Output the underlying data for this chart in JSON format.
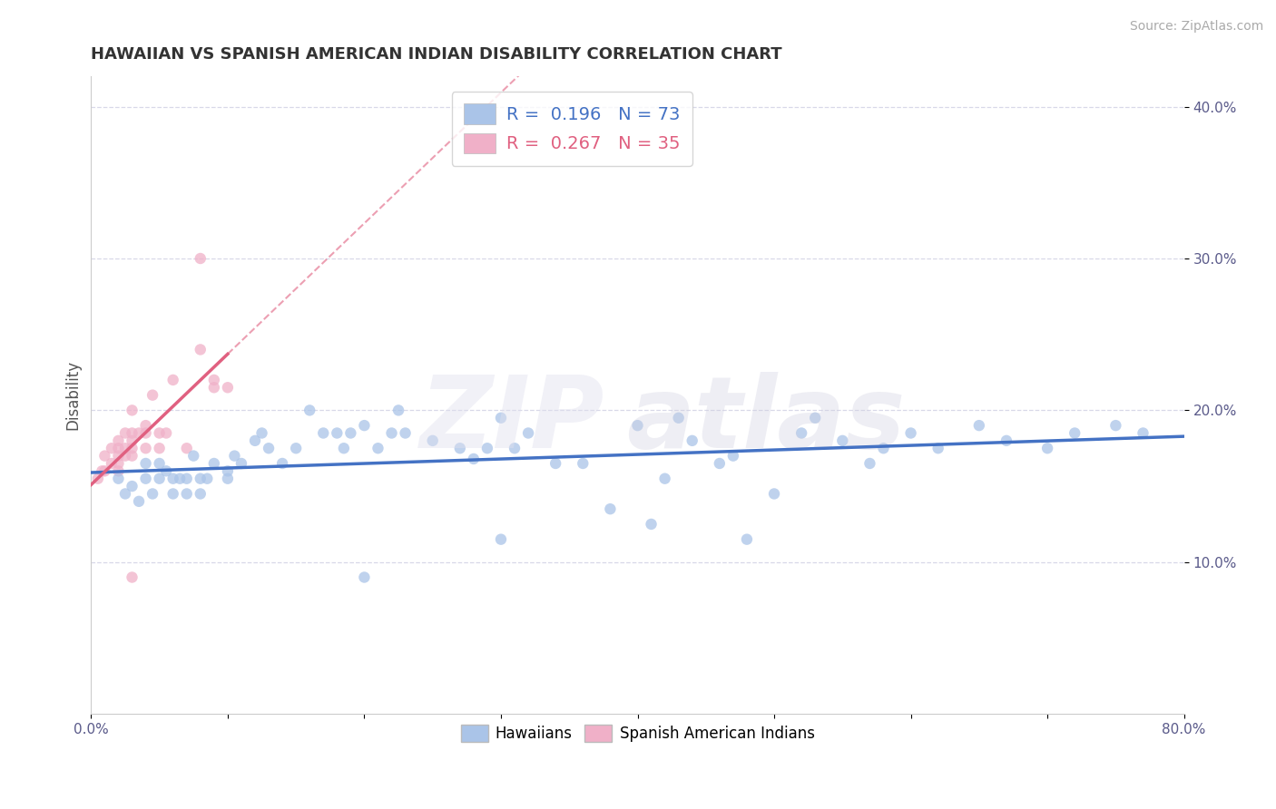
{
  "title": "HAWAIIAN VS SPANISH AMERICAN INDIAN DISABILITY CORRELATION CHART",
  "source": "Source: ZipAtlas.com",
  "ylabel": "Disability",
  "xlim": [
    0.0,
    0.8
  ],
  "ylim": [
    0.0,
    0.42
  ],
  "xticks": [
    0.0,
    0.1,
    0.2,
    0.3,
    0.4,
    0.5,
    0.6,
    0.7,
    0.8
  ],
  "yticks": [
    0.1,
    0.2,
    0.3,
    0.4
  ],
  "xtick_labels": [
    "0.0%",
    "",
    "",
    "",
    "",
    "",
    "",
    "",
    "80.0%"
  ],
  "ytick_labels": [
    "10.0%",
    "20.0%",
    "30.0%",
    "40.0%"
  ],
  "hawaiians_color": "#aac4e8",
  "spanish_color": "#f0b0c8",
  "hawaiians_line_color": "#4472c4",
  "spanish_line_color": "#e06080",
  "R_hawaiians": 0.196,
  "N_hawaiians": 73,
  "R_spanish": 0.267,
  "N_spanish": 35,
  "background_color": "#ffffff",
  "grid_color": "#d8d8e8",
  "hawaiians_x": [
    0.02,
    0.025,
    0.03,
    0.035,
    0.04,
    0.04,
    0.045,
    0.05,
    0.05,
    0.055,
    0.06,
    0.06,
    0.065,
    0.07,
    0.07,
    0.075,
    0.08,
    0.08,
    0.085,
    0.09,
    0.1,
    0.1,
    0.105,
    0.11,
    0.12,
    0.125,
    0.13,
    0.14,
    0.15,
    0.16,
    0.17,
    0.18,
    0.185,
    0.19,
    0.2,
    0.21,
    0.22,
    0.225,
    0.23,
    0.25,
    0.27,
    0.28,
    0.29,
    0.3,
    0.31,
    0.32,
    0.34,
    0.36,
    0.38,
    0.4,
    0.41,
    0.42,
    0.43,
    0.44,
    0.46,
    0.47,
    0.5,
    0.52,
    0.53,
    0.55,
    0.57,
    0.58,
    0.6,
    0.62,
    0.65,
    0.67,
    0.7,
    0.72,
    0.75,
    0.77,
    0.3,
    0.48,
    0.2
  ],
  "hawaiians_y": [
    0.155,
    0.145,
    0.15,
    0.14,
    0.155,
    0.165,
    0.145,
    0.155,
    0.165,
    0.16,
    0.145,
    0.155,
    0.155,
    0.145,
    0.155,
    0.17,
    0.145,
    0.155,
    0.155,
    0.165,
    0.155,
    0.16,
    0.17,
    0.165,
    0.18,
    0.185,
    0.175,
    0.165,
    0.175,
    0.2,
    0.185,
    0.185,
    0.175,
    0.185,
    0.19,
    0.175,
    0.185,
    0.2,
    0.185,
    0.18,
    0.175,
    0.168,
    0.175,
    0.195,
    0.175,
    0.185,
    0.165,
    0.165,
    0.135,
    0.19,
    0.125,
    0.155,
    0.195,
    0.18,
    0.165,
    0.17,
    0.145,
    0.185,
    0.195,
    0.18,
    0.165,
    0.175,
    0.185,
    0.175,
    0.19,
    0.18,
    0.175,
    0.185,
    0.19,
    0.185,
    0.115,
    0.115,
    0.09
  ],
  "spanish_x": [
    0.005,
    0.008,
    0.01,
    0.01,
    0.015,
    0.015,
    0.02,
    0.02,
    0.02,
    0.02,
    0.02,
    0.025,
    0.025,
    0.025,
    0.03,
    0.03,
    0.03,
    0.03,
    0.03,
    0.035,
    0.04,
    0.04,
    0.04,
    0.045,
    0.05,
    0.05,
    0.055,
    0.06,
    0.07,
    0.08,
    0.09,
    0.1,
    0.08,
    0.09,
    0.03
  ],
  "spanish_y": [
    0.155,
    0.16,
    0.16,
    0.17,
    0.165,
    0.175,
    0.16,
    0.165,
    0.17,
    0.175,
    0.18,
    0.17,
    0.175,
    0.185,
    0.17,
    0.175,
    0.18,
    0.185,
    0.2,
    0.185,
    0.175,
    0.185,
    0.19,
    0.21,
    0.175,
    0.185,
    0.185,
    0.22,
    0.175,
    0.24,
    0.22,
    0.215,
    0.3,
    0.215,
    0.09
  ]
}
